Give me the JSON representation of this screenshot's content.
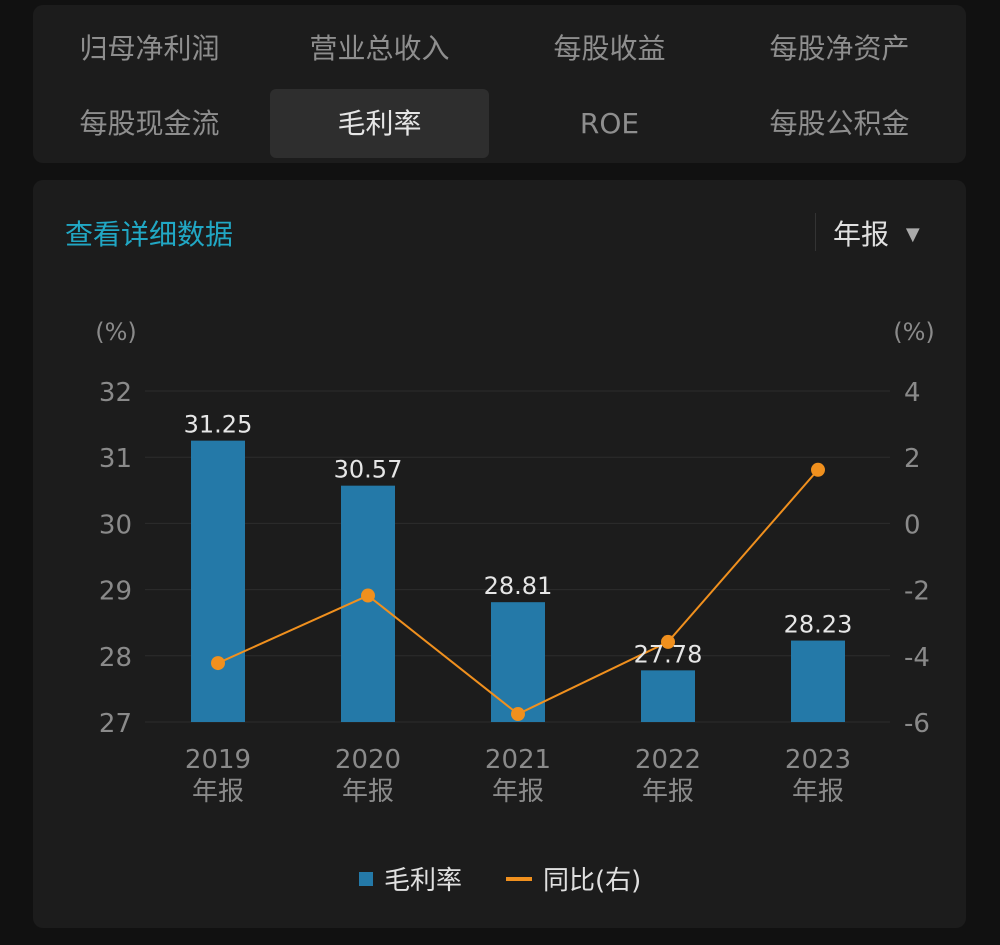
{
  "tabs": [
    {
      "label": "归母净利润",
      "selected": false
    },
    {
      "label": "营业总收入",
      "selected": false
    },
    {
      "label": "每股收益",
      "selected": false
    },
    {
      "label": "每股净资产",
      "selected": false
    },
    {
      "label": "每股现金流",
      "selected": false
    },
    {
      "label": "毛利率",
      "selected": true
    },
    {
      "label": "ROE",
      "selected": false
    },
    {
      "label": "每股公积金",
      "selected": false
    }
  ],
  "detail_link": "查看详细数据",
  "period_select": {
    "value": "年报",
    "icon": "caret-down-icon"
  },
  "colors": {
    "bar": "#2479a8",
    "line": "#f0901e",
    "link": "#21a7c4"
  },
  "chart_data": {
    "type": "bar+line",
    "categories": [
      [
        "2019",
        "年报"
      ],
      [
        "2020",
        "年报"
      ],
      [
        "2021",
        "年报"
      ],
      [
        "2022",
        "年报"
      ],
      [
        "2023",
        "年报"
      ]
    ],
    "left_axis": {
      "unit": "(%)",
      "ticks": [
        27,
        28,
        29,
        30,
        31,
        32
      ],
      "range": [
        27,
        32
      ]
    },
    "right_axis": {
      "unit": "(%)",
      "ticks": [
        -6,
        -4,
        -2,
        0,
        2,
        4
      ],
      "range": [
        -6,
        4
      ]
    },
    "series": [
      {
        "name": "毛利率",
        "type": "bar",
        "axis": "left",
        "values": [
          31.25,
          30.57,
          28.81,
          27.78,
          28.23
        ],
        "labels": [
          "31.25",
          "30.57",
          "28.81",
          "27.78",
          "28.23"
        ]
      },
      {
        "name": "同比(右)",
        "type": "line",
        "axis": "right",
        "values": [
          -4.22,
          -2.18,
          -5.76,
          -3.58,
          1.62
        ]
      }
    ],
    "grid": true,
    "legend": "bottom"
  }
}
